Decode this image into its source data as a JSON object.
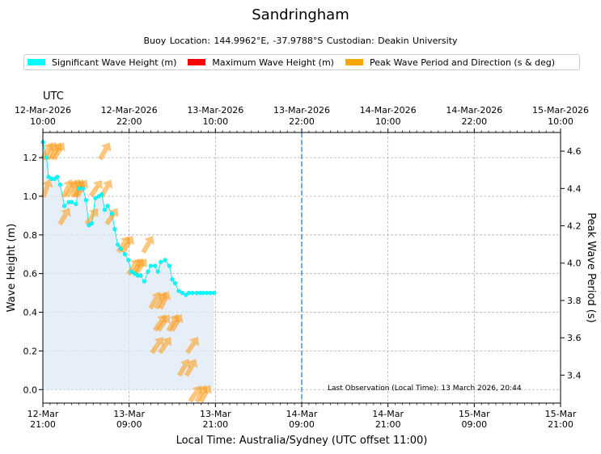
{
  "title": "Sandringham",
  "subtitle": "Buoy Location: 144.9962°E, -37.9788°S     Custodian: Deakin University",
  "legend": [
    {
      "label": "Significant Wave Height (m)",
      "color": "#00ffff"
    },
    {
      "label": "Maximum Wave Height (m)",
      "color": "#ff0000"
    },
    {
      "label": "Peak Wave Period and Direction (s & deg)",
      "color": "#ffa500"
    }
  ],
  "top_axis_title": "UTC",
  "chart_data": {
    "type": "line",
    "x_unit": "hours since 12-Mar 21:00 local",
    "xlim": [
      0,
      72
    ],
    "ylim": [
      -0.07,
      1.33
    ],
    "y2lim": [
      3.25,
      4.7
    ],
    "ylabel": "Wave Height (m)",
    "y2label": "Peak Wave Period (s)",
    "xlabel": "Local Time: Australia/Sydney (UTC offset 11:00)",
    "yticks": [
      0.0,
      0.2,
      0.4,
      0.6,
      0.8,
      1.0,
      1.2
    ],
    "y2ticks": [
      3.4,
      3.6,
      3.8,
      4.0,
      4.2,
      4.4,
      4.6
    ],
    "bottom_ticks": [
      {
        "x": 0,
        "line1": "12-Mar",
        "line2": "21:00"
      },
      {
        "x": 12,
        "line1": "13-Mar",
        "line2": "09:00"
      },
      {
        "x": 24,
        "line1": "13-Mar",
        "line2": "21:00"
      },
      {
        "x": 36,
        "line1": "14-Mar",
        "line2": "09:00"
      },
      {
        "x": 48,
        "line1": "14-Mar",
        "line2": "21:00"
      },
      {
        "x": 60,
        "line1": "15-Mar",
        "line2": "09:00"
      },
      {
        "x": 72,
        "line1": "15-Mar",
        "line2": "21:00"
      }
    ],
    "top_ticks": [
      {
        "x": 0,
        "line1": "12-Mar-2026",
        "line2": "10:00"
      },
      {
        "x": 12,
        "line1": "12-Mar-2026",
        "line2": "22:00"
      },
      {
        "x": 24,
        "line1": "13-Mar-2026",
        "line2": "10:00"
      },
      {
        "x": 36,
        "line1": "13-Mar-2026",
        "line2": "22:00"
      },
      {
        "x": 48,
        "line1": "14-Mar-2026",
        "line2": "10:00"
      },
      {
        "x": 60,
        "line1": "14-Mar-2026",
        "line2": "22:00"
      },
      {
        "x": 72,
        "line1": "15-Mar-2026",
        "line2": "10:00"
      }
    ],
    "now_marker_x": 36,
    "annotation": "Last Observation (Local Time): 13 March 2026, 20:44",
    "series": [
      {
        "name": "Significant Wave Height (m)",
        "x": [
          0.0,
          0.5,
          0.8,
          1.2,
          1.6,
          2.0,
          2.4,
          3.0,
          3.6,
          4.0,
          4.6,
          5.0,
          5.6,
          6.0,
          6.4,
          6.8,
          7.3,
          7.8,
          8.2,
          8.6,
          9.0,
          9.6,
          10.0,
          10.4,
          10.8,
          11.4,
          11.9,
          12.3,
          12.8,
          13.2,
          13.6,
          14.1,
          14.6,
          15.0,
          15.6,
          16.0,
          16.4,
          17.0,
          17.6,
          18.0,
          18.4,
          18.9,
          19.4,
          19.9,
          20.3,
          20.8,
          21.4,
          21.9,
          22.3,
          22.8,
          23.3,
          23.8
        ],
        "values": [
          1.28,
          1.2,
          1.1,
          1.09,
          1.09,
          1.1,
          1.06,
          0.95,
          0.97,
          0.97,
          0.96,
          1.04,
          1.04,
          0.98,
          0.85,
          0.86,
          0.99,
          1.0,
          1.01,
          0.93,
          0.95,
          0.91,
          0.83,
          0.75,
          0.73,
          0.7,
          0.67,
          0.61,
          0.6,
          0.59,
          0.59,
          0.56,
          0.61,
          0.64,
          0.64,
          0.61,
          0.66,
          0.67,
          0.64,
          0.57,
          0.55,
          0.51,
          0.5,
          0.49,
          0.5,
          0.5,
          0.5,
          0.5,
          0.5,
          0.5,
          0.5,
          0.5
        ]
      },
      {
        "name": "Maximum Wave Height (m)",
        "x": [],
        "values": []
      },
      {
        "name": "Peak Wave Period and Direction (s & deg)",
        "x": [
          0.6,
          1.2,
          1.8,
          2.2,
          0.5,
          3.4,
          4.0,
          4.6,
          5.0,
          5.4,
          3.0,
          6.8,
          7.4,
          8.8,
          9.6,
          8.6,
          11.8,
          11.2,
          13.2,
          14.6,
          13.6,
          12.6,
          16.4,
          16.9,
          15.6,
          18.1,
          16.3,
          16.8,
          18.6,
          17.0,
          15.9,
          20.6,
          19.6,
          20.8,
          22.0,
          22.6,
          21.2
        ],
        "values": [
          4.6,
          4.6,
          4.6,
          4.6,
          4.4,
          4.4,
          4.4,
          4.4,
          4.4,
          4.4,
          4.25,
          4.25,
          4.4,
          4.4,
          4.25,
          4.6,
          4.1,
          4.1,
          3.98,
          4.1,
          3.98,
          3.98,
          3.8,
          3.8,
          3.8,
          3.68,
          3.68,
          3.68,
          3.68,
          3.56,
          3.56,
          3.44,
          3.44,
          3.56,
          3.3,
          3.3,
          3.3
        ],
        "direction_deg": [
          210,
          205,
          210,
          210,
          200,
          205,
          210,
          200,
          205,
          210,
          210,
          215,
          215,
          210,
          215,
          210,
          210,
          215,
          210,
          210,
          215,
          215,
          210,
          205,
          210,
          210,
          215,
          215,
          210,
          215,
          215,
          210,
          210,
          215,
          210,
          210,
          215
        ]
      }
    ]
  }
}
